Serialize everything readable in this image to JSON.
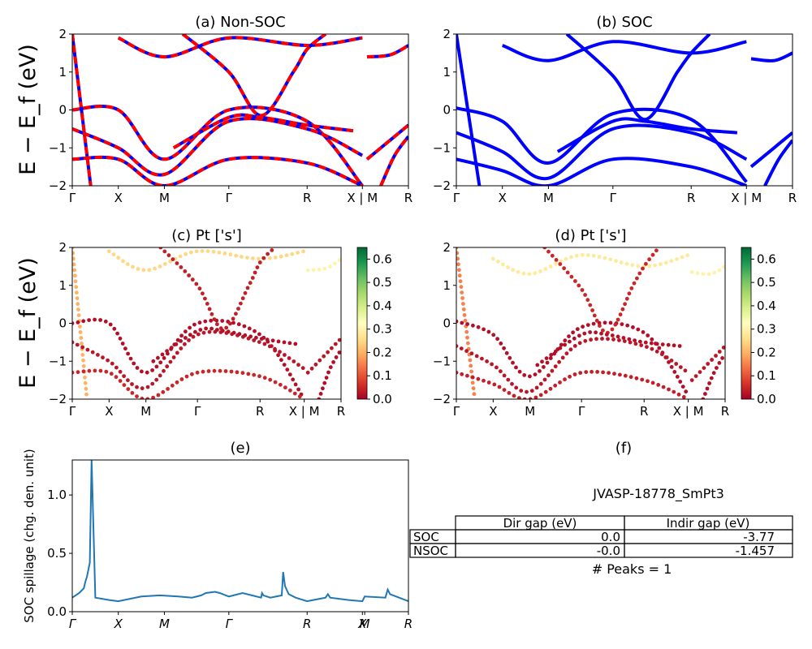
{
  "figure": {
    "ylabel_top": "E − E_f (eV)",
    "ylabel_mid": "E − E_f (eV)"
  },
  "chart_data": [
    {
      "id": "a",
      "type": "line",
      "title": "(a) Non-SOC",
      "ylim": [
        -2,
        2
      ],
      "yticks": [
        "2",
        "1",
        "0",
        "−1",
        "−2"
      ],
      "kpath_labels": [
        "Γ",
        "X",
        "M",
        "Γ",
        "R",
        "X | M",
        "R"
      ],
      "kpath_x": [
        0,
        1,
        2,
        3.4,
        5.1,
        6.3,
        7.3
      ],
      "colors": {
        "spin_up": "#ff0000",
        "spin_down": "#0000ff"
      },
      "bands": [
        [
          [
            0,
            2.0
          ],
          [
            0.4,
            -2.0
          ]
        ],
        [
          [
            0,
            0.0
          ],
          [
            1,
            0.0
          ],
          [
            2,
            -1.3
          ],
          [
            3.4,
            0.0
          ],
          [
            5.1,
            -0.3
          ],
          [
            6.3,
            -2.0
          ]
        ],
        [
          [
            0,
            -0.5
          ],
          [
            1,
            -1.0
          ],
          [
            2,
            -1.7
          ],
          [
            3.4,
            -0.3
          ],
          [
            5.1,
            -0.5
          ],
          [
            6.3,
            -1.2
          ]
        ],
        [
          [
            0,
            -1.3
          ],
          [
            1,
            -1.3
          ],
          [
            2,
            -2.0
          ],
          [
            3.4,
            -1.3
          ],
          [
            5.1,
            -1.4
          ],
          [
            6.3,
            -2.0
          ]
        ],
        [
          [
            1,
            1.9
          ],
          [
            2,
            1.4
          ],
          [
            3.4,
            1.9
          ],
          [
            5.1,
            1.7
          ],
          [
            6.3,
            1.9
          ]
        ],
        [
          [
            2.4,
            2.0
          ],
          [
            3.4,
            1.0
          ],
          [
            4.1,
            -0.15
          ],
          [
            4.8,
            1.0
          ],
          [
            5.1,
            1.6
          ],
          [
            5.5,
            2.0
          ]
        ],
        [
          [
            2.2,
            -1.0
          ],
          [
            3.4,
            -0.2
          ],
          [
            4.1,
            -0.2
          ],
          [
            5.1,
            -0.4
          ],
          [
            6.1,
            -0.55
          ]
        ],
        [
          [
            6.4,
            1.4
          ],
          [
            6.9,
            1.45
          ],
          [
            7.3,
            1.7
          ]
        ],
        [
          [
            6.4,
            -1.3
          ],
          [
            6.9,
            -0.8
          ],
          [
            7.3,
            -0.4
          ]
        ],
        [
          [
            6.7,
            -2.0
          ],
          [
            7.0,
            -1.2
          ],
          [
            7.3,
            -0.7
          ]
        ]
      ]
    },
    {
      "id": "b",
      "type": "line",
      "title": "(b) SOC",
      "ylim": [
        -2,
        2
      ],
      "yticks": [
        "2",
        "1",
        "0",
        "−1",
        "−2"
      ],
      "kpath_labels": [
        "Γ",
        "X",
        "M",
        "Γ",
        "R",
        "X | M",
        "R"
      ],
      "kpath_x": [
        0,
        1,
        2,
        3.4,
        5.1,
        6.3,
        7.3
      ],
      "colors": {
        "bands": "#0000ff"
      },
      "bands": [
        [
          [
            0,
            2.0
          ],
          [
            0.5,
            -2.0
          ]
        ],
        [
          [
            0,
            0.05
          ],
          [
            1,
            -0.3
          ],
          [
            2,
            -1.4
          ],
          [
            3.4,
            -0.1
          ],
          [
            5.1,
            -0.25
          ],
          [
            6.3,
            -1.9
          ]
        ],
        [
          [
            0,
            -0.6
          ],
          [
            1,
            -1.1
          ],
          [
            2,
            -1.8
          ],
          [
            3.4,
            -0.5
          ],
          [
            5.1,
            -0.6
          ],
          [
            6.3,
            -1.3
          ]
        ],
        [
          [
            0,
            -1.3
          ],
          [
            1,
            -1.6
          ],
          [
            2,
            -2.0
          ],
          [
            3.4,
            -1.3
          ],
          [
            5.1,
            -1.5
          ],
          [
            6.3,
            -2.0
          ]
        ],
        [
          [
            1,
            1.7
          ],
          [
            2,
            1.3
          ],
          [
            3.4,
            1.8
          ],
          [
            5.1,
            1.5
          ],
          [
            6.3,
            1.8
          ]
        ],
        [
          [
            2.4,
            2.0
          ],
          [
            3.4,
            0.9
          ],
          [
            4.1,
            -0.25
          ],
          [
            4.8,
            1.0
          ],
          [
            5.1,
            1.5
          ],
          [
            5.5,
            2.0
          ]
        ],
        [
          [
            2.2,
            -1.1
          ],
          [
            3.4,
            -0.3
          ],
          [
            4.1,
            -0.3
          ],
          [
            5.1,
            -0.5
          ],
          [
            6.1,
            -0.6
          ]
        ],
        [
          [
            6.4,
            1.35
          ],
          [
            6.9,
            1.3
          ],
          [
            7.3,
            1.5
          ]
        ],
        [
          [
            6.4,
            -1.5
          ],
          [
            6.9,
            -1.0
          ],
          [
            7.3,
            -0.6
          ]
        ],
        [
          [
            6.7,
            -2.0
          ],
          [
            7.0,
            -1.3
          ],
          [
            7.3,
            -0.8
          ]
        ]
      ]
    },
    {
      "id": "c",
      "type": "scatter",
      "title": "(c)  Pt ['s']",
      "ylim": [
        -2,
        2
      ],
      "yticks": [
        "2",
        "1",
        "0",
        "−1",
        "−2"
      ],
      "kpath_labels": [
        "Γ",
        "X",
        "M",
        "Γ",
        "R",
        "X | M",
        "R"
      ],
      "kpath_x": [
        0,
        1,
        2,
        3.4,
        5.1,
        6.3,
        7.3
      ],
      "colorbar": {
        "ticks": [
          "0.6",
          "0.5",
          "0.4",
          "0.3",
          "0.2",
          "0.1",
          "0.0"
        ],
        "range": [
          0,
          0.65
        ]
      },
      "bands": [
        {
          "w": 0.2,
          "pts": [
            [
              0,
              2.0
            ],
            [
              0.4,
              -2.0
            ]
          ]
        },
        {
          "w": 0.02,
          "pts": [
            [
              0,
              0.0
            ],
            [
              1,
              0.0
            ],
            [
              2,
              -1.3
            ],
            [
              3.4,
              0.0
            ],
            [
              5.1,
              -0.3
            ],
            [
              6.3,
              -2.0
            ]
          ]
        },
        {
          "w": 0.03,
          "pts": [
            [
              0,
              -0.5
            ],
            [
              1,
              -1.0
            ],
            [
              2,
              -1.7
            ],
            [
              3.4,
              -0.3
            ],
            [
              5.1,
              -0.5
            ],
            [
              6.3,
              -1.2
            ]
          ]
        },
        {
          "w": 0.05,
          "pts": [
            [
              0,
              -1.3
            ],
            [
              1,
              -1.3
            ],
            [
              2,
              -2.0
            ],
            [
              3.4,
              -1.3
            ],
            [
              5.1,
              -1.4
            ],
            [
              6.3,
              -2.0
            ]
          ]
        },
        {
          "w": 0.25,
          "pts": [
            [
              1,
              1.9
            ],
            [
              2,
              1.4
            ],
            [
              3.4,
              1.9
            ],
            [
              5.1,
              1.7
            ],
            [
              6.3,
              1.9
            ]
          ]
        },
        {
          "w": 0.04,
          "pts": [
            [
              2.4,
              2.0
            ],
            [
              3.4,
              1.0
            ],
            [
              4.1,
              -0.15
            ],
            [
              4.8,
              1.0
            ],
            [
              5.1,
              1.6
            ],
            [
              5.5,
              2.0
            ]
          ]
        },
        {
          "w": 0.02,
          "pts": [
            [
              2.2,
              -1.0
            ],
            [
              3.4,
              -0.2
            ],
            [
              4.1,
              -0.2
            ],
            [
              5.1,
              -0.4
            ],
            [
              6.1,
              -0.55
            ]
          ]
        },
        {
          "w": 0.3,
          "pts": [
            [
              6.4,
              1.4
            ],
            [
              6.9,
              1.45
            ],
            [
              7.3,
              1.7
            ]
          ]
        },
        {
          "w": 0.03,
          "pts": [
            [
              6.4,
              -1.3
            ],
            [
              6.9,
              -0.8
            ],
            [
              7.3,
              -0.4
            ]
          ]
        },
        {
          "w": 0.02,
          "pts": [
            [
              6.7,
              -2.0
            ],
            [
              7.0,
              -1.2
            ],
            [
              7.3,
              -0.7
            ]
          ]
        }
      ]
    },
    {
      "id": "d",
      "type": "scatter",
      "title": "(d) Pt ['s']",
      "ylim": [
        -2,
        2
      ],
      "yticks": [
        "2",
        "1",
        "0",
        "−1",
        "−2"
      ],
      "kpath_labels": [
        "Γ",
        "X",
        "M",
        "Γ",
        "R",
        "X | M",
        "R"
      ],
      "kpath_x": [
        0,
        1,
        2,
        3.4,
        5.1,
        6.3,
        7.3
      ],
      "colorbar": {
        "ticks": [
          "0.6",
          "0.5",
          "0.4",
          "0.3",
          "0.2",
          "0.1",
          "0.0"
        ],
        "range": [
          0,
          0.65
        ]
      },
      "bands": [
        {
          "w": 0.15,
          "pts": [
            [
              0,
              2.0
            ],
            [
              0.5,
              -2.0
            ]
          ]
        },
        {
          "w": 0.02,
          "pts": [
            [
              0,
              0.05
            ],
            [
              1,
              -0.3
            ],
            [
              2,
              -1.4
            ],
            [
              3.4,
              -0.1
            ],
            [
              5.1,
              -0.25
            ],
            [
              6.3,
              -1.9
            ]
          ]
        },
        {
          "w": 0.03,
          "pts": [
            [
              0,
              -0.6
            ],
            [
              1,
              -1.1
            ],
            [
              2,
              -1.8
            ],
            [
              3.4,
              -0.5
            ],
            [
              5.1,
              -0.6
            ],
            [
              6.3,
              -1.3
            ]
          ]
        },
        {
          "w": 0.04,
          "pts": [
            [
              0,
              -1.3
            ],
            [
              1,
              -1.6
            ],
            [
              2,
              -2.0
            ],
            [
              3.4,
              -1.3
            ],
            [
              5.1,
              -1.5
            ],
            [
              6.3,
              -2.0
            ]
          ]
        },
        {
          "w": 0.28,
          "pts": [
            [
              1,
              1.7
            ],
            [
              2,
              1.3
            ],
            [
              3.4,
              1.8
            ],
            [
              5.1,
              1.5
            ],
            [
              6.3,
              1.8
            ]
          ]
        },
        {
          "w": 0.05,
          "pts": [
            [
              2.4,
              2.0
            ],
            [
              3.4,
              0.9
            ],
            [
              4.1,
              -0.25
            ],
            [
              4.8,
              1.0
            ],
            [
              5.1,
              1.5
            ],
            [
              5.5,
              2.0
            ]
          ]
        },
        {
          "w": 0.02,
          "pts": [
            [
              2.2,
              -1.1
            ],
            [
              3.4,
              -0.3
            ],
            [
              4.1,
              -0.3
            ],
            [
              5.1,
              -0.5
            ],
            [
              6.1,
              -0.6
            ]
          ]
        },
        {
          "w": 0.3,
          "pts": [
            [
              6.4,
              1.35
            ],
            [
              6.9,
              1.3
            ],
            [
              7.3,
              1.5
            ]
          ]
        },
        {
          "w": 0.03,
          "pts": [
            [
              6.4,
              -1.5
            ],
            [
              6.9,
              -1.0
            ],
            [
              7.3,
              -0.6
            ]
          ]
        },
        {
          "w": 0.02,
          "pts": [
            [
              6.7,
              -2.0
            ],
            [
              7.0,
              -1.3
            ],
            [
              7.3,
              -0.8
            ]
          ]
        }
      ]
    },
    {
      "id": "e",
      "type": "line",
      "title": "(e)",
      "ylabel": "SOC spillage (chg. den. unit)",
      "ylim": [
        0,
        1.3
      ],
      "yticks": [
        "1.0",
        "0.5",
        "0.0"
      ],
      "kpath_labels": [
        "Γ",
        "X",
        "M",
        "Γ",
        "R",
        "X",
        "M",
        "R"
      ],
      "kpath_x": [
        0,
        1,
        2,
        3.4,
        5.1,
        6.3,
        6.35,
        7.3
      ],
      "color": "#1f77b4",
      "x": [
        0,
        0.15,
        0.25,
        0.28,
        0.32,
        0.38,
        0.42,
        0.5,
        0.8,
        1.0,
        1.5,
        1.9,
        2.3,
        2.6,
        2.8,
        2.9,
        3.1,
        3.2,
        3.4,
        3.5,
        3.7,
        3.9,
        4.1,
        4.12,
        4.15,
        4.3,
        4.55,
        4.58,
        4.62,
        4.7,
        4.85,
        5.1,
        5.5,
        5.55,
        5.6,
        6.0,
        6.3,
        6.35,
        6.8,
        6.85,
        6.9,
        7.3
      ],
      "y": [
        0.12,
        0.16,
        0.2,
        0.25,
        0.3,
        0.42,
        1.3,
        0.12,
        0.1,
        0.09,
        0.13,
        0.14,
        0.13,
        0.12,
        0.14,
        0.16,
        0.17,
        0.16,
        0.13,
        0.14,
        0.16,
        0.14,
        0.12,
        0.16,
        0.14,
        0.12,
        0.14,
        0.34,
        0.22,
        0.15,
        0.12,
        0.09,
        0.12,
        0.15,
        0.12,
        0.1,
        0.09,
        0.13,
        0.12,
        0.19,
        0.15,
        0.09
      ]
    }
  ],
  "table_f": {
    "title": "(f)",
    "material": "JVASP-18778_SmPt3",
    "columns": [
      "Dir gap (eV)",
      "Indir gap (eV)"
    ],
    "rows": [
      {
        "label": "SOC",
        "dir": "0.0",
        "indir": "-3.77"
      },
      {
        "label": "NSOC",
        "dir": "-0.0",
        "indir": "-1.457"
      }
    ],
    "peaks": "# Peaks = 1"
  }
}
